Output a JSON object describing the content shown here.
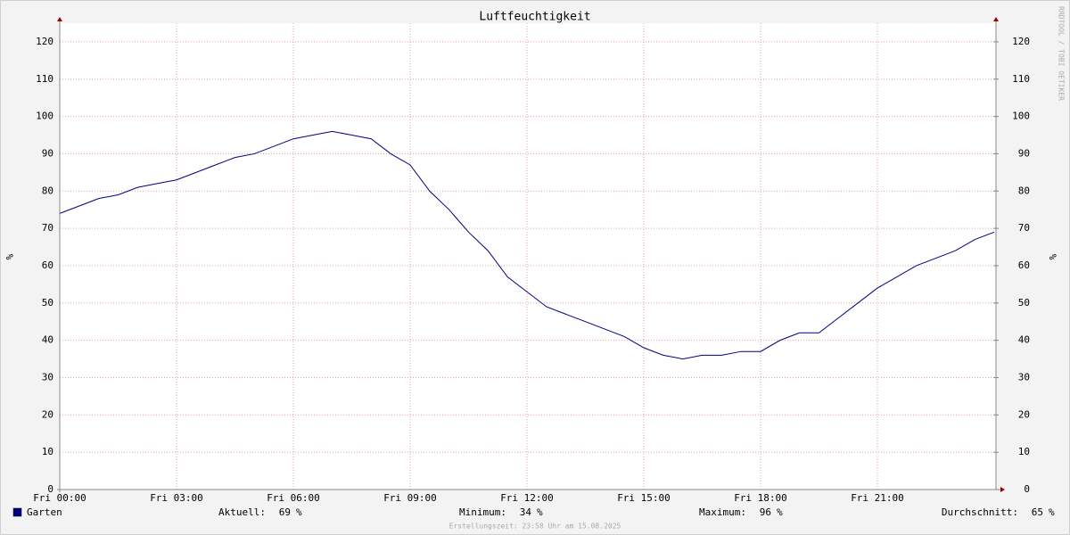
{
  "chart_data": {
    "type": "line",
    "title": "Luftfeuchtigkeit",
    "y_label": "%",
    "y2_label": "%",
    "watermark": "RRDTOOL / TOBI OETIKER",
    "footer": "Erstellungszeit: 23:58 Uhr am 15.08.2025",
    "x": [
      0,
      0.5,
      1,
      1.5,
      2,
      2.5,
      3,
      3.5,
      4,
      4.5,
      5,
      5.5,
      6,
      6.5,
      7,
      7.5,
      8,
      8.5,
      9,
      9.5,
      10,
      10.5,
      11,
      11.5,
      12,
      12.5,
      13,
      13.5,
      14,
      14.5,
      15,
      15.5,
      16,
      16.5,
      17,
      17.5,
      18,
      18.5,
      19,
      19.5,
      20,
      20.5,
      21,
      21.5,
      22,
      22.5,
      23,
      23.5,
      24
    ],
    "series": [
      {
        "name": "Garten",
        "color": "#000080",
        "values": [
          74,
          76,
          78,
          79,
          81,
          82,
          83,
          85,
          87,
          89,
          90,
          92,
          94,
          95,
          96,
          95,
          94,
          90,
          87,
          80,
          75,
          69,
          64,
          57,
          53,
          49,
          47,
          45,
          43,
          41,
          38,
          36,
          35,
          36,
          36,
          37,
          37,
          40,
          42,
          42,
          46,
          50,
          54,
          57,
          60,
          62,
          64,
          67,
          69
        ]
      }
    ],
    "stats": [
      {
        "label": "Aktuell:",
        "value": 69,
        "unit": "%"
      },
      {
        "label": "Minimum:",
        "value": 34,
        "unit": "%"
      },
      {
        "label": "Maximum:",
        "value": 96,
        "unit": "%"
      },
      {
        "label": "Durchschnitt:",
        "value": 65,
        "unit": "%"
      }
    ],
    "xlim": [
      0,
      24
    ],
    "xticks": [
      {
        "value": 0,
        "label": "Fri 00:00"
      },
      {
        "value": 3,
        "label": "Fri 03:00"
      },
      {
        "value": 6,
        "label": "Fri 06:00"
      },
      {
        "value": 9,
        "label": "Fri 09:00"
      },
      {
        "value": 12,
        "label": "Fri 12:00"
      },
      {
        "value": 15,
        "label": "Fri 15:00"
      },
      {
        "value": 18,
        "label": "Fri 18:00"
      },
      {
        "value": 21,
        "label": "Fri 21:00"
      }
    ],
    "ylim": [
      0,
      125
    ],
    "yticks": [
      0,
      10,
      20,
      30,
      40,
      50,
      60,
      70,
      80,
      90,
      100,
      110,
      120
    ],
    "y2lim": [
      0,
      125
    ],
    "y2ticks": [
      0,
      10,
      20,
      30,
      40,
      50,
      60,
      70,
      80,
      90,
      100,
      110,
      120
    ],
    "grid": true
  }
}
